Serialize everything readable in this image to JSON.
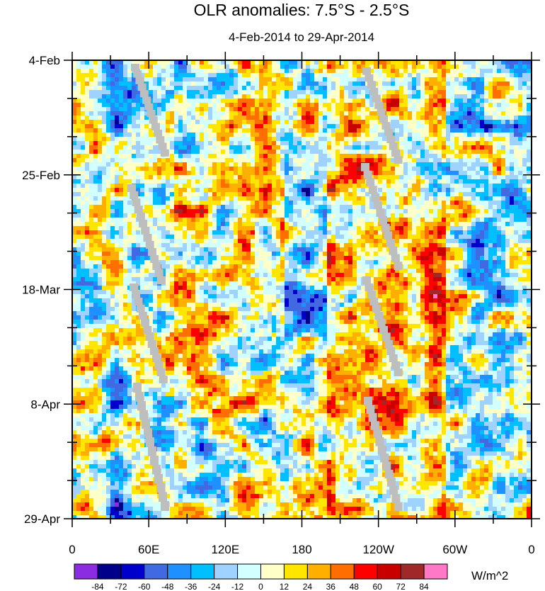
{
  "chart_data": {
    "type": "heatmap",
    "title": "OLR anomalies: 7.5°S - 2.5°S",
    "subtitle": "4-Feb-2014 to 29-Apr-2014",
    "xlabel": "",
    "ylabel": "",
    "x_tick_labels": [
      "0",
      "60E",
      "120E",
      "180",
      "120W",
      "60W",
      "0"
    ],
    "x_tick_lon_east": [
      0,
      60,
      120,
      180,
      240,
      300,
      360
    ],
    "y_tick_labels": [
      "4-Feb",
      "25-Feb",
      "18-Mar",
      "8-Apr",
      "29-Apr"
    ],
    "y_tick_day_offset": [
      0,
      21,
      42,
      63,
      84
    ],
    "xlim": [
      0,
      360
    ],
    "colorbar": {
      "units": "W/m^2",
      "labels": [
        "-84",
        "-72",
        "-60",
        "-48",
        "-36",
        "-24",
        "-12",
        "0",
        "12",
        "24",
        "36",
        "48",
        "60",
        "72",
        "84"
      ],
      "colors": [
        "#8b2be2",
        "#00008b",
        "#0000cd",
        "#4169e1",
        "#1e90ff",
        "#00bfff",
        "#a0d2ff",
        "#d2ffff",
        "#ffffc8",
        "#ffe600",
        "#ffaf00",
        "#ff6e00",
        "#ff0000",
        "#c80000",
        "#a02828",
        "#ff78c8"
      ]
    },
    "missing_color": "#bebebe"
  }
}
